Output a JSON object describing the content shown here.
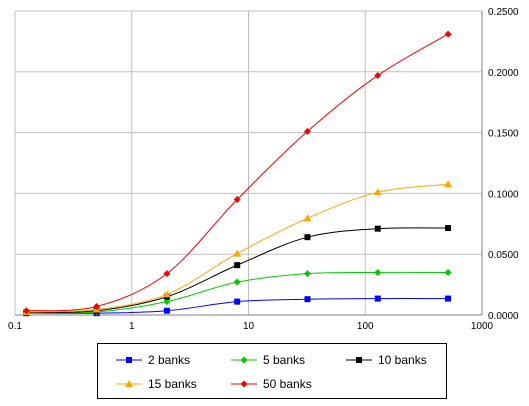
{
  "chart_data": {
    "type": "line",
    "x_scale": "log",
    "xlim": [
      0.1,
      1000
    ],
    "ylim": [
      0,
      0.25
    ],
    "y_axis_position": "right",
    "grid": true,
    "legend_position": "bottom",
    "x_ticks": [
      "0.1",
      "1",
      "10",
      "100",
      "1000"
    ],
    "y_ticks": [
      "0.0000",
      "0.0500",
      "0.1000",
      "0.1500",
      "0.2000",
      "0.2500"
    ],
    "x": [
      0.125,
      0.5,
      2,
      8,
      32,
      128,
      512
    ],
    "series": [
      {
        "name": "2 banks",
        "color": "#0000ff",
        "marker": "square",
        "values": [
          0.0015,
          0.0015,
          0.0035,
          0.011,
          0.013,
          0.0135,
          0.0135
        ]
      },
      {
        "name": "5 banks",
        "color": "#00cc00",
        "marker": "diamond",
        "values": [
          0.0015,
          0.0025,
          0.011,
          0.027,
          0.034,
          0.035,
          0.035
        ]
      },
      {
        "name": "10 banks",
        "color": "#000000",
        "marker": "square",
        "values": [
          0.002,
          0.0035,
          0.015,
          0.041,
          0.064,
          0.071,
          0.0715
        ]
      },
      {
        "name": "15 banks",
        "color": "#ffa500",
        "marker": "triangle",
        "values": [
          0.0025,
          0.0045,
          0.017,
          0.0505,
          0.0795,
          0.101,
          0.1075
        ]
      },
      {
        "name": "50 banks",
        "color": "#ff0000",
        "marker": "diamond",
        "values": [
          0.0035,
          0.007,
          0.034,
          0.095,
          0.151,
          0.197,
          0.231
        ]
      }
    ]
  }
}
